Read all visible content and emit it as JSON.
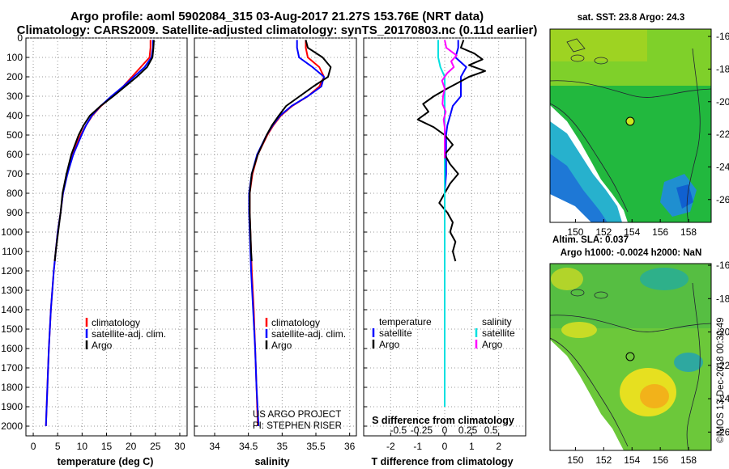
{
  "title": {
    "line1": "Argo profile: aoml 5902084_315 03-Aug-2017 21.27S 153.76E (NRT data)",
    "line2": "Climatology: CARS2009. Satellite-adjusted climatology: synTS_20170803.nc (0.11d earlier)"
  },
  "depth_axis": {
    "range": [
      0,
      2050
    ],
    "ticks": [
      0,
      100,
      200,
      300,
      400,
      500,
      600,
      700,
      800,
      900,
      1000,
      1100,
      1200,
      1300,
      1400,
      1500,
      1600,
      1700,
      1800,
      1900,
      2000
    ]
  },
  "colors": {
    "climatology": "#ff0000",
    "satellite": "#0000ff",
    "argo": "#000000",
    "satellite_salinity": "#00e0e0",
    "argo_salinity": "#ff00ff"
  },
  "chart_data": [
    {
      "id": "temperature",
      "type": "line",
      "xlabel": "temperature (deg C)",
      "xlim": [
        -1.5,
        31.5
      ],
      "xticks": [
        0,
        5,
        10,
        15,
        20,
        25,
        30
      ],
      "xtick_labels": [
        "0",
        "5",
        "10",
        "15",
        "20",
        "25",
        "30"
      ],
      "legend": [
        "climatology",
        "satellite-adj. clim.",
        "Argo"
      ],
      "series": [
        {
          "name": "climatology",
          "color": "#ff0000",
          "depth": [
            10,
            50,
            100,
            150,
            200,
            250,
            300,
            350,
            400,
            450,
            500,
            600,
            700,
            800,
            900,
            1000,
            1200,
            1400,
            1600,
            1800,
            2000
          ],
          "values": [
            24,
            24,
            23.8,
            22,
            20.2,
            18.4,
            16.2,
            13.9,
            12.1,
            10.8,
            9.7,
            8.0,
            6.9,
            6.1,
            5.6,
            5.0,
            4.2,
            3.6,
            3.2,
            2.9,
            2.6
          ]
        },
        {
          "name": "satellite-adj. clim.",
          "color": "#0000ff",
          "depth": [
            10,
            50,
            100,
            150,
            200,
            250,
            300,
            350,
            400,
            450,
            500,
            600,
            700,
            800,
            900,
            1000,
            1200,
            1400,
            1600,
            1800,
            2000
          ],
          "values": [
            24.5,
            24.5,
            24.2,
            22.8,
            20.6,
            18.4,
            16.0,
            13.8,
            12.0,
            10.8,
            9.9,
            8.2,
            7.0,
            6.1,
            5.6,
            5.0,
            4.2,
            3.6,
            3.2,
            2.9,
            2.6
          ]
        },
        {
          "name": "Argo",
          "color": "#000000",
          "depth": [
            10,
            50,
            100,
            150,
            200,
            250,
            300,
            350,
            400,
            450,
            500,
            600,
            700,
            800,
            900,
            1000,
            1100,
            1150
          ],
          "values": [
            24.7,
            24.6,
            24.4,
            23.3,
            21.2,
            18.8,
            16.4,
            13.8,
            11.6,
            10.3,
            9.3,
            7.8,
            6.8,
            6.0,
            5.6,
            5.1,
            4.6,
            4.4
          ]
        }
      ]
    },
    {
      "id": "salinity",
      "type": "line",
      "xlabel": "salinity",
      "xlim": [
        33.7,
        36.1
      ],
      "xticks": [
        34,
        34.5,
        35,
        35.5,
        36
      ],
      "xtick_labels": [
        "34",
        "34.5",
        "35",
        "35.5",
        "36"
      ],
      "legend": [
        "climatology",
        "satellite-adj. clim.",
        "Argo"
      ],
      "credit": [
        "US ARGO PROJECT",
        "PI: STEPHEN RISER"
      ],
      "series": [
        {
          "name": "climatology",
          "color": "#ff0000",
          "depth": [
            10,
            50,
            100,
            150,
            200,
            250,
            300,
            350,
            400,
            450,
            500,
            600,
            700,
            800,
            900,
            1000,
            1200,
            1400,
            1600,
            1800,
            2000
          ],
          "values": [
            35.35,
            35.35,
            35.38,
            35.55,
            35.62,
            35.55,
            35.38,
            35.15,
            34.98,
            34.87,
            34.78,
            34.64,
            34.56,
            34.52,
            34.52,
            34.53,
            34.55,
            34.58,
            34.6,
            34.62,
            34.64
          ]
        },
        {
          "name": "satellite-adj. clim.",
          "color": "#0000ff",
          "depth": [
            10,
            50,
            100,
            150,
            200,
            250,
            300,
            350,
            400,
            450,
            500,
            600,
            700,
            800,
            900,
            1000,
            1200,
            1400,
            1600,
            1800,
            2000
          ],
          "values": [
            35.22,
            35.22,
            35.25,
            35.45,
            35.62,
            35.58,
            35.38,
            35.14,
            34.97,
            34.86,
            34.77,
            34.63,
            34.55,
            34.51,
            34.51,
            34.52,
            34.54,
            34.57,
            34.6,
            34.62,
            34.65
          ]
        },
        {
          "name": "Argo",
          "color": "#000000",
          "depth": [
            10,
            50,
            100,
            150,
            200,
            250,
            300,
            350,
            400,
            450,
            500,
            600,
            700,
            800,
            900,
            1000,
            1100,
            1150
          ],
          "values": [
            35.35,
            35.38,
            35.6,
            35.72,
            35.68,
            35.46,
            35.26,
            35.06,
            34.95,
            34.85,
            34.77,
            34.64,
            34.55,
            34.52,
            34.52,
            34.53,
            34.54,
            34.55
          ]
        }
      ]
    },
    {
      "id": "differences",
      "type": "line",
      "xlabel": "T difference from climatology",
      "xlim": [
        -3,
        3
      ],
      "xticks": [
        -2,
        -1,
        0,
        1,
        2
      ],
      "xtick_labels": [
        "-2",
        "-1",
        "0",
        "1",
        "2"
      ],
      "s_axis_label": "S difference from climatology",
      "s_ticks": [
        -0.5,
        -0.25,
        0,
        0.25,
        0.5
      ],
      "s_tick_labels": [
        "-0.5",
        "-0.25",
        "0",
        "0.25",
        "0.5"
      ],
      "legend_temperature": {
        "header": "temperature",
        "items": [
          "satellite",
          "Argo"
        ]
      },
      "legend_salinity": {
        "header": "salinity",
        "items": [
          "satellite",
          "Argo"
        ]
      },
      "series": [
        {
          "name": "temperature satellite",
          "color": "#0000ff",
          "axis": "T",
          "depth": [
            10,
            50,
            100,
            150,
            200,
            250,
            300,
            350,
            400,
            450,
            500,
            600,
            700,
            800
          ],
          "values": [
            0.5,
            0.5,
            0.4,
            0.8,
            0.6,
            0.6,
            0.6,
            0.3,
            0.2,
            0.1,
            0.05,
            0.05,
            0.05,
            0.0
          ]
        },
        {
          "name": "temperature Argo",
          "color": "#000000",
          "axis": "T",
          "depth": [
            10,
            50,
            80,
            110,
            140,
            170,
            200,
            230,
            260,
            300,
            340,
            380,
            420,
            460,
            500,
            550,
            600,
            650,
            700,
            750,
            800,
            850,
            900,
            950,
            1000,
            1050,
            1100,
            1150
          ],
          "values": [
            0.7,
            0.6,
            1.1,
            1.4,
            0.9,
            1.5,
            0.9,
            0.5,
            0.1,
            -0.4,
            -0.8,
            -0.6,
            -1.0,
            -0.4,
            0.0,
            0.3,
            0.0,
            0.2,
            0.5,
            0.2,
            0.0,
            -0.2,
            0.1,
            0.3,
            0.2,
            0.4,
            0.3,
            0.4
          ]
        },
        {
          "name": "salinity satellite",
          "color": "#00e0e0",
          "axis": "S",
          "depth": [
            10,
            50,
            100,
            150,
            200,
            300,
            400,
            500,
            600,
            700,
            800,
            1000,
            1200,
            1400,
            1600,
            1800,
            1900
          ],
          "values": [
            -0.12,
            -0.12,
            -0.12,
            -0.08,
            0.0,
            0.0,
            0.0,
            0.0,
            0.0,
            0.0,
            0.0,
            0.0,
            0.0,
            0.0,
            0.0,
            0.0,
            0.0
          ]
        },
        {
          "name": "salinity Argo",
          "color": "#ff00ff",
          "axis": "S",
          "depth": [
            10,
            50,
            90,
            120,
            150,
            180,
            220,
            260,
            300,
            340,
            380,
            420,
            460,
            500,
            560,
            620
          ],
          "values": [
            0.0,
            0.03,
            0.22,
            0.12,
            0.17,
            0.05,
            -0.05,
            0.0,
            -0.03,
            -0.04,
            0.02,
            -0.02,
            0.0,
            0.0,
            0.0,
            0.0
          ]
        }
      ]
    }
  ],
  "map_sst": {
    "title": "sat. SST: 23.8 Argo: 24.3",
    "lat_ticks": [
      "-16",
      "-18",
      "-20",
      "-22",
      "-24",
      "-26"
    ],
    "lon_ticks": [
      "150",
      "152",
      "154",
      "156",
      "158"
    ]
  },
  "map_sla": {
    "title1": "Altim. SLA: 0.037",
    "title2": "Argo h1000: -0.0024 h2000: NaN",
    "lat_ticks": [
      "-16",
      "-18",
      "-20",
      "-22",
      "-24",
      "-26"
    ],
    "lon_ticks": [
      "150",
      "152",
      "154",
      "156",
      "158"
    ]
  },
  "credit_vertical": "©IMOS 13-Dec-2018 00:30:49"
}
